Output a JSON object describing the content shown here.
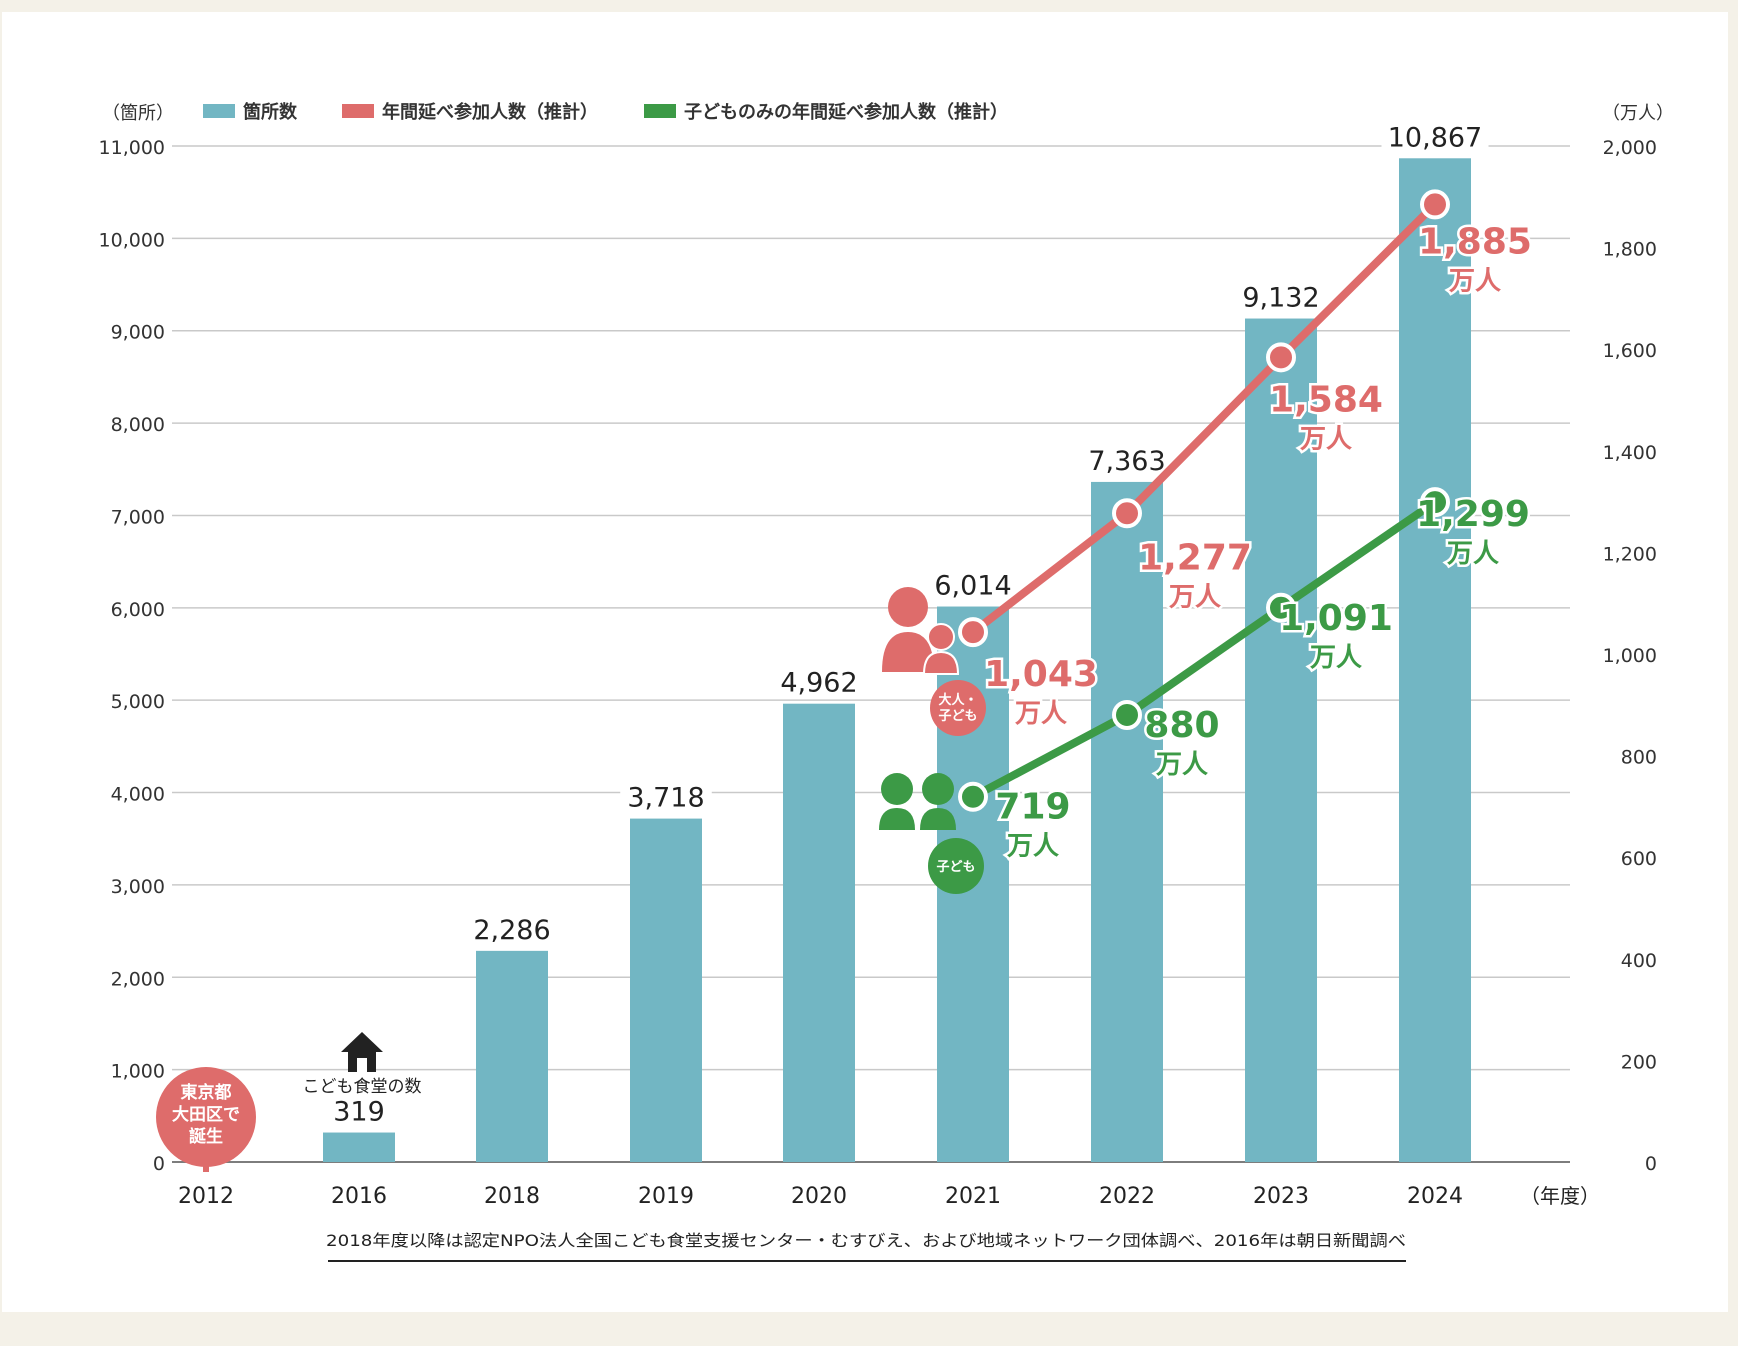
{
  "chart_data": {
    "type": "bar",
    "categories": [
      "2012",
      "2016",
      "2018",
      "2019",
      "2020",
      "2021",
      "2022",
      "2023",
      "2024"
    ],
    "x_unit": "（年度）",
    "bar_series": {
      "name": "箇所数",
      "color": "#72b6c3",
      "values": [
        0,
        319,
        2286,
        3718,
        4962,
        6014,
        7363,
        9132,
        10867
      ],
      "labels": [
        "",
        "319",
        "2,286",
        "3,718",
        "4,962",
        "6,014",
        "7,363",
        "9,132",
        "10,867"
      ]
    },
    "line_series": [
      {
        "name": "年間延べ参加人数（推計）",
        "color": "#de6c6b",
        "x": [
          "2021",
          "2022",
          "2023",
          "2024"
        ],
        "values": [
          1043,
          1277,
          1584,
          1885
        ],
        "labels": [
          "1,043",
          "1,277",
          "1,584",
          "1,885"
        ],
        "unit_label": "万人"
      },
      {
        "name": "子どものみの年間延べ参加人数（推計）",
        "color": "#3c9a46",
        "x": [
          "2021",
          "2022",
          "2023",
          "2024"
        ],
        "values": [
          719,
          880,
          1091,
          1299
        ],
        "labels": [
          "719",
          "880",
          "1,091",
          "1,299"
        ],
        "unit_label": "万人"
      }
    ],
    "left_axis": {
      "unit_label": "（箇所）",
      "ylim": [
        0,
        11000
      ],
      "ticks": [
        0,
        1000,
        2000,
        3000,
        4000,
        5000,
        6000,
        7000,
        8000,
        9000,
        10000,
        11000
      ],
      "tick_labels": [
        "0",
        "1,000",
        "2,000",
        "3,000",
        "4,000",
        "5,000",
        "6,000",
        "7,000",
        "8,000",
        "9,000",
        "10,000",
        "11,000"
      ]
    },
    "right_axis": {
      "unit_label": "（万人）",
      "ylim": [
        0,
        2000
      ],
      "ticks": [
        0,
        200,
        400,
        600,
        800,
        1000,
        1200,
        1400,
        1600,
        1800,
        2000
      ],
      "tick_labels": [
        "0",
        "200",
        "400",
        "600",
        "800",
        "1,000",
        "1,200",
        "1,400",
        "1,600",
        "1,800",
        "2,000"
      ]
    },
    "grid": true,
    "legend_position": "top",
    "annotations": {
      "origin_badge_lines": [
        "東京都",
        "大田区で",
        "誕生"
      ],
      "origin_badge_color": "#de6c6b",
      "house_caption": "こども食堂の数",
      "adult_child_badge_lines": [
        "大人・",
        "子ども"
      ],
      "child_badge": "子ども"
    },
    "source_note": "2018年度以降は認定NPO法人全国こども食堂支援センター・むすびえ、および地域ネットワーク団体調べ、2016年は朝日新聞調べ"
  },
  "icons": [
    "house-icon",
    "adult-child-icon",
    "children-icon"
  ]
}
